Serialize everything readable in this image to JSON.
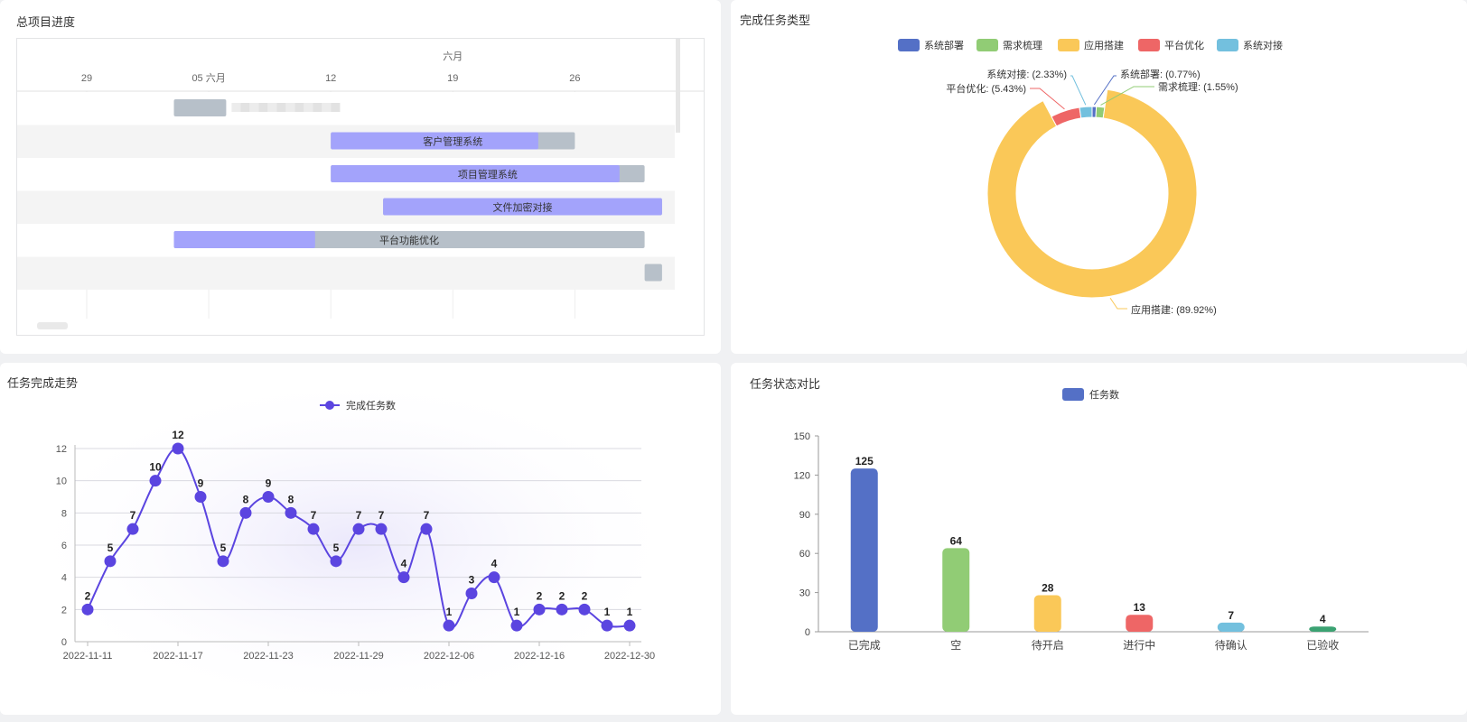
{
  "panels": {
    "gantt_title": "总项目进度",
    "pie_title": "完成任务类型",
    "line_title": "任务完成走势",
    "bar_title": "任务状态对比"
  },
  "chart_data": [
    {
      "type": "gantt",
      "month_label": "六月",
      "ticks": [
        "29",
        "05 六月",
        "12",
        "19",
        "26"
      ],
      "tasks": [
        {
          "name": "",
          "start": "2022-06-03",
          "end": "2022-06-06",
          "done": 0
        },
        {
          "name": "客户管理系统",
          "start": "2022-06-12",
          "end": "2022-06-26",
          "done": 0.85
        },
        {
          "name": "项目管理系统",
          "start": "2022-06-12",
          "end": "2022-06-30",
          "done": 0.92
        },
        {
          "name": "文件加密对接",
          "start": "2022-06-15",
          "end": "2022-07-01",
          "done": 1
        },
        {
          "name": "平台功能优化",
          "start": "2022-06-03",
          "end": "2022-06-30",
          "done": 0.3
        },
        {
          "name": "",
          "start": "2022-06-30",
          "end": "2022-07-01",
          "done": 0
        }
      ],
      "colors": {
        "progress": "#a3a3fb",
        "remain": "#b7c0c9"
      }
    },
    {
      "type": "pie",
      "legend": [
        "系统部署",
        "需求梳理",
        "应用搭建",
        "平台优化",
        "系统对接"
      ],
      "slices": [
        {
          "name": "系统部署",
          "value": 0.77,
          "label": "系统部署: (0.77%)",
          "color": "#5470c6"
        },
        {
          "name": "需求梳理",
          "value": 1.55,
          "label": "需求梳理: (1.55%)",
          "color": "#91cc75"
        },
        {
          "name": "应用搭建",
          "value": 89.92,
          "label": "应用搭建: (89.92%)",
          "color": "#fac858"
        },
        {
          "name": "平台优化",
          "value": 5.43,
          "label": "平台优化: (5.43%)",
          "color": "#ee6666"
        },
        {
          "name": "系统对接",
          "value": 2.33,
          "label": "系统对接: (2.33%)",
          "color": "#73c0de"
        }
      ]
    },
    {
      "type": "line",
      "legend": "完成任务数",
      "color": "#5b45e0",
      "x": [
        "2022-11-11",
        "2022-11-12",
        "2022-11-13",
        "2022-11-14",
        "2022-11-17",
        "2022-11-18",
        "2022-11-19",
        "2022-11-21",
        "2022-11-23",
        "2022-11-24",
        "2022-11-25",
        "2022-11-28",
        "2022-11-29",
        "2022-11-30",
        "2022-12-01",
        "2022-12-02",
        "2022-12-06",
        "2022-12-07",
        "2022-12-08",
        "2022-12-12",
        "2022-12-16",
        "2022-12-19",
        "2022-12-23",
        "2022-12-28",
        "2022-12-30"
      ],
      "values": [
        2,
        5,
        7,
        10,
        12,
        9,
        5,
        8,
        9,
        8,
        7,
        5,
        7,
        7,
        4,
        7,
        1,
        3,
        4,
        1,
        2,
        2,
        2,
        1,
        1
      ],
      "xticks": [
        "2022-11-11",
        "2022-11-17",
        "2022-11-23",
        "2022-11-29",
        "2022-12-06",
        "2022-12-16",
        "2022-12-30"
      ],
      "yticks": [
        "0",
        "2",
        "4",
        "6",
        "8",
        "10",
        "12"
      ],
      "ylim": [
        0,
        12
      ]
    },
    {
      "type": "bar",
      "legend": "任务数",
      "categories": [
        "已完成",
        "空",
        "待开启",
        "进行中",
        "待确认",
        "已验收"
      ],
      "values": [
        125,
        64,
        28,
        13,
        7,
        4
      ],
      "colors": [
        "#5470c6",
        "#91cc75",
        "#fac858",
        "#ee6666",
        "#73c0de",
        "#3ba272"
      ],
      "yticks": [
        "0",
        "30",
        "60",
        "90",
        "120",
        "150"
      ],
      "ylim": [
        0,
        150
      ]
    }
  ]
}
